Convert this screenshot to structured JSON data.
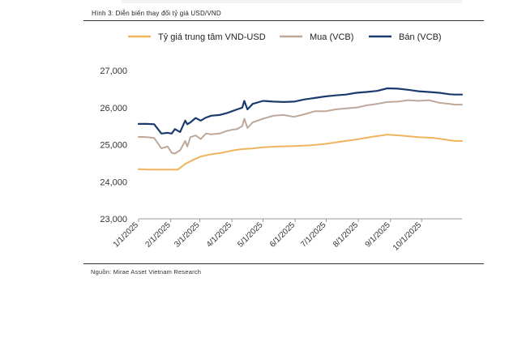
{
  "caption": "Hình 3: Diễn biến thay đổi tỷ giá USD/VND",
  "source": "Nguồn: Mirae Asset Vietnam Research",
  "chart_data": {
    "type": "line",
    "title": "",
    "xlabel": "",
    "ylabel": "",
    "ylim": [
      23000,
      27000
    ],
    "yticks": [
      23000,
      24000,
      25000,
      26000,
      27000
    ],
    "ytick_labels": [
      "23,000",
      "24,000",
      "25,000",
      "26,000",
      "27,000"
    ],
    "xlim": [
      0,
      312
    ],
    "xticks": [
      0,
      31,
      59,
      90,
      120,
      151,
      181,
      212,
      243,
      273
    ],
    "xtick_labels": [
      "1/1/2025",
      "2/1/2025",
      "3/1/2025",
      "4/1/2025",
      "5/1/2025",
      "6/1/2025",
      "7/1/2025",
      "8/1/2025",
      "9/1/2025",
      "10/1/2025"
    ],
    "x_unit": "days since 1/1/2025",
    "legend": "top",
    "series": [
      {
        "name": "Tỷ giá trung tâm VND-USD",
        "color": "#f0b35e",
        "x": [
          0,
          10,
          20,
          30,
          38,
          45,
          52,
          60,
          70,
          80,
          90,
          100,
          110,
          120,
          135,
          150,
          165,
          180,
          195,
          210,
          225,
          240,
          255,
          270,
          285,
          295,
          305,
          312
        ],
        "y": [
          24340,
          24330,
          24330,
          24330,
          24330,
          24480,
          24580,
          24680,
          24740,
          24780,
          24840,
          24880,
          24900,
          24930,
          24950,
          24960,
          24980,
          25020,
          25080,
          25140,
          25210,
          25270,
          25240,
          25200,
          25180,
          25140,
          25100,
          25100
        ]
      },
      {
        "name": "Mua (VCB)",
        "color": "#bda89a",
        "x": [
          0,
          8,
          15,
          22,
          28,
          32,
          35,
          40,
          45,
          47,
          50,
          55,
          60,
          65,
          70,
          78,
          85,
          90,
          95,
          100,
          102,
          105,
          110,
          120,
          130,
          140,
          150,
          160,
          170,
          180,
          190,
          200,
          210,
          220,
          230,
          240,
          250,
          260,
          270,
          280,
          290,
          300,
          305,
          312
        ],
        "y": [
          25210,
          25200,
          25180,
          24900,
          24950,
          24780,
          24760,
          24850,
          25100,
          24950,
          25200,
          25250,
          25150,
          25300,
          25280,
          25300,
          25370,
          25400,
          25420,
          25500,
          25700,
          25450,
          25600,
          25700,
          25780,
          25800,
          25750,
          25820,
          25900,
          25900,
          25950,
          25980,
          26000,
          26060,
          26100,
          26150,
          26160,
          26200,
          26180,
          26200,
          26130,
          26100,
          26080,
          26080
        ]
      },
      {
        "name": "Bán (VCB)",
        "color": "#1a3b6c",
        "x": [
          0,
          8,
          15,
          22,
          28,
          32,
          35,
          40,
          45,
          47,
          50,
          55,
          60,
          65,
          70,
          78,
          85,
          90,
          95,
          100,
          102,
          105,
          110,
          120,
          130,
          140,
          150,
          160,
          170,
          180,
          190,
          200,
          210,
          220,
          230,
          240,
          250,
          260,
          270,
          280,
          290,
          300,
          305,
          312
        ],
        "y": [
          25560,
          25560,
          25550,
          25300,
          25320,
          25300,
          25420,
          25340,
          25650,
          25550,
          25600,
          25720,
          25650,
          25730,
          25780,
          25800,
          25850,
          25900,
          25950,
          26000,
          26180,
          25950,
          26100,
          26180,
          26160,
          26150,
          26160,
          26220,
          26260,
          26300,
          26330,
          26350,
          26400,
          26420,
          26450,
          26520,
          26510,
          26480,
          26440,
          26420,
          26400,
          26360,
          26350,
          26350
        ]
      }
    ]
  }
}
